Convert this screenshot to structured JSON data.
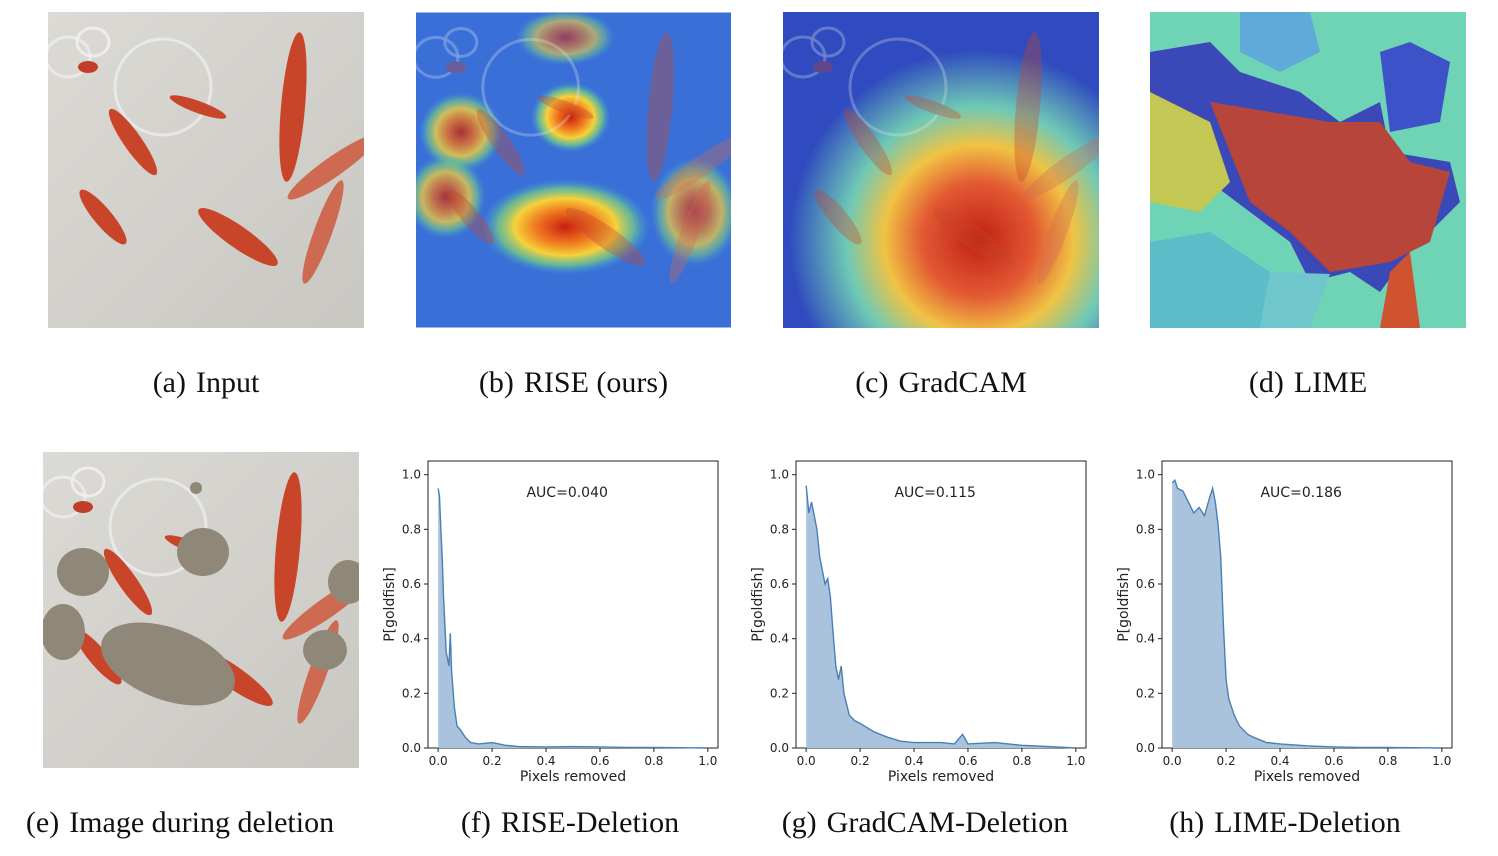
{
  "figure": {
    "top_row": [
      {
        "tag": "(a)",
        "label": "Input"
      },
      {
        "tag": "(b)",
        "label": "RISE (ours)"
      },
      {
        "tag": "(c)",
        "label": "GradCAM"
      },
      {
        "tag": "(d)",
        "label": "LIME"
      }
    ],
    "bottom_row": [
      {
        "tag": "(e)",
        "label": "Image during deletion"
      },
      {
        "tag": "(f)",
        "label": "RISE-Deletion"
      },
      {
        "tag": "(g)",
        "label": "GradCAM-Deletion"
      },
      {
        "tag": "(h)",
        "label": "LIME-Deletion"
      }
    ]
  },
  "colors": {
    "curve": "#4a7fb5",
    "fill": "#a9c3dd",
    "water": "#d6d4d0",
    "fish": "#c8452a",
    "mask": "#8f8878"
  },
  "chart_data": [
    {
      "type": "area",
      "annotation": "AUC=0.040",
      "xlabel": "Pixels removed",
      "ylabel": "P[goldfish]",
      "xlim": [
        0,
        1
      ],
      "ylim": [
        0,
        1
      ],
      "xticks": [
        "0.0",
        "0.2",
        "0.4",
        "0.6",
        "0.8",
        "1.0"
      ],
      "yticks": [
        "0.0",
        "0.2",
        "0.4",
        "0.6",
        "0.8",
        "1.0"
      ],
      "x": [
        0,
        0.005,
        0.01,
        0.015,
        0.02,
        0.03,
        0.04,
        0.045,
        0.05,
        0.06,
        0.07,
        0.08,
        0.1,
        0.12,
        0.15,
        0.2,
        0.25,
        0.3,
        0.4,
        0.5,
        0.6,
        0.7,
        0.8,
        0.9,
        1.0
      ],
      "y": [
        0.95,
        0.92,
        0.8,
        0.7,
        0.55,
        0.35,
        0.3,
        0.42,
        0.28,
        0.15,
        0.08,
        0.07,
        0.04,
        0.02,
        0.015,
        0.02,
        0.01,
        0.005,
        0.004,
        0.005,
        0.004,
        0.002,
        0.002,
        0.001,
        0
      ]
    },
    {
      "type": "area",
      "annotation": "AUC=0.115",
      "xlabel": "Pixels removed",
      "ylabel": "P[goldfish]",
      "xlim": [
        0,
        1
      ],
      "ylim": [
        0,
        1
      ],
      "xticks": [
        "0.0",
        "0.2",
        "0.4",
        "0.6",
        "0.8",
        "1.0"
      ],
      "yticks": [
        "0.0",
        "0.2",
        "0.4",
        "0.6",
        "0.8",
        "1.0"
      ],
      "x": [
        0,
        0.01,
        0.02,
        0.03,
        0.04,
        0.05,
        0.06,
        0.07,
        0.08,
        0.09,
        0.1,
        0.11,
        0.12,
        0.13,
        0.14,
        0.16,
        0.18,
        0.2,
        0.25,
        0.3,
        0.35,
        0.4,
        0.5,
        0.55,
        0.58,
        0.6,
        0.7,
        0.75,
        0.8,
        0.9,
        1.0
      ],
      "y": [
        0.96,
        0.86,
        0.9,
        0.85,
        0.8,
        0.7,
        0.65,
        0.6,
        0.62,
        0.55,
        0.42,
        0.3,
        0.25,
        0.3,
        0.2,
        0.12,
        0.1,
        0.09,
        0.06,
        0.04,
        0.025,
        0.02,
        0.02,
        0.015,
        0.05,
        0.015,
        0.02,
        0.015,
        0.01,
        0.005,
        0
      ]
    },
    {
      "type": "area",
      "annotation": "AUC=0.186",
      "xlabel": "Pixels removed",
      "ylabel": "P[goldfish]",
      "xlim": [
        0,
        1
      ],
      "ylim": [
        0,
        1
      ],
      "xticks": [
        "0.0",
        "0.2",
        "0.4",
        "0.6",
        "0.8",
        "1.0"
      ],
      "yticks": [
        "0.0",
        "0.2",
        "0.4",
        "0.6",
        "0.8",
        "1.0"
      ],
      "x": [
        0,
        0.01,
        0.02,
        0.04,
        0.06,
        0.08,
        0.1,
        0.12,
        0.14,
        0.15,
        0.16,
        0.17,
        0.18,
        0.19,
        0.2,
        0.21,
        0.23,
        0.25,
        0.28,
        0.3,
        0.35,
        0.4,
        0.5,
        0.6,
        0.7,
        0.8,
        0.9,
        1.0
      ],
      "y": [
        0.97,
        0.98,
        0.95,
        0.94,
        0.9,
        0.86,
        0.88,
        0.85,
        0.92,
        0.95,
        0.9,
        0.82,
        0.7,
        0.45,
        0.25,
        0.18,
        0.12,
        0.08,
        0.05,
        0.04,
        0.02,
        0.015,
        0.008,
        0.004,
        0.002,
        0.002,
        0.001,
        0
      ]
    }
  ]
}
